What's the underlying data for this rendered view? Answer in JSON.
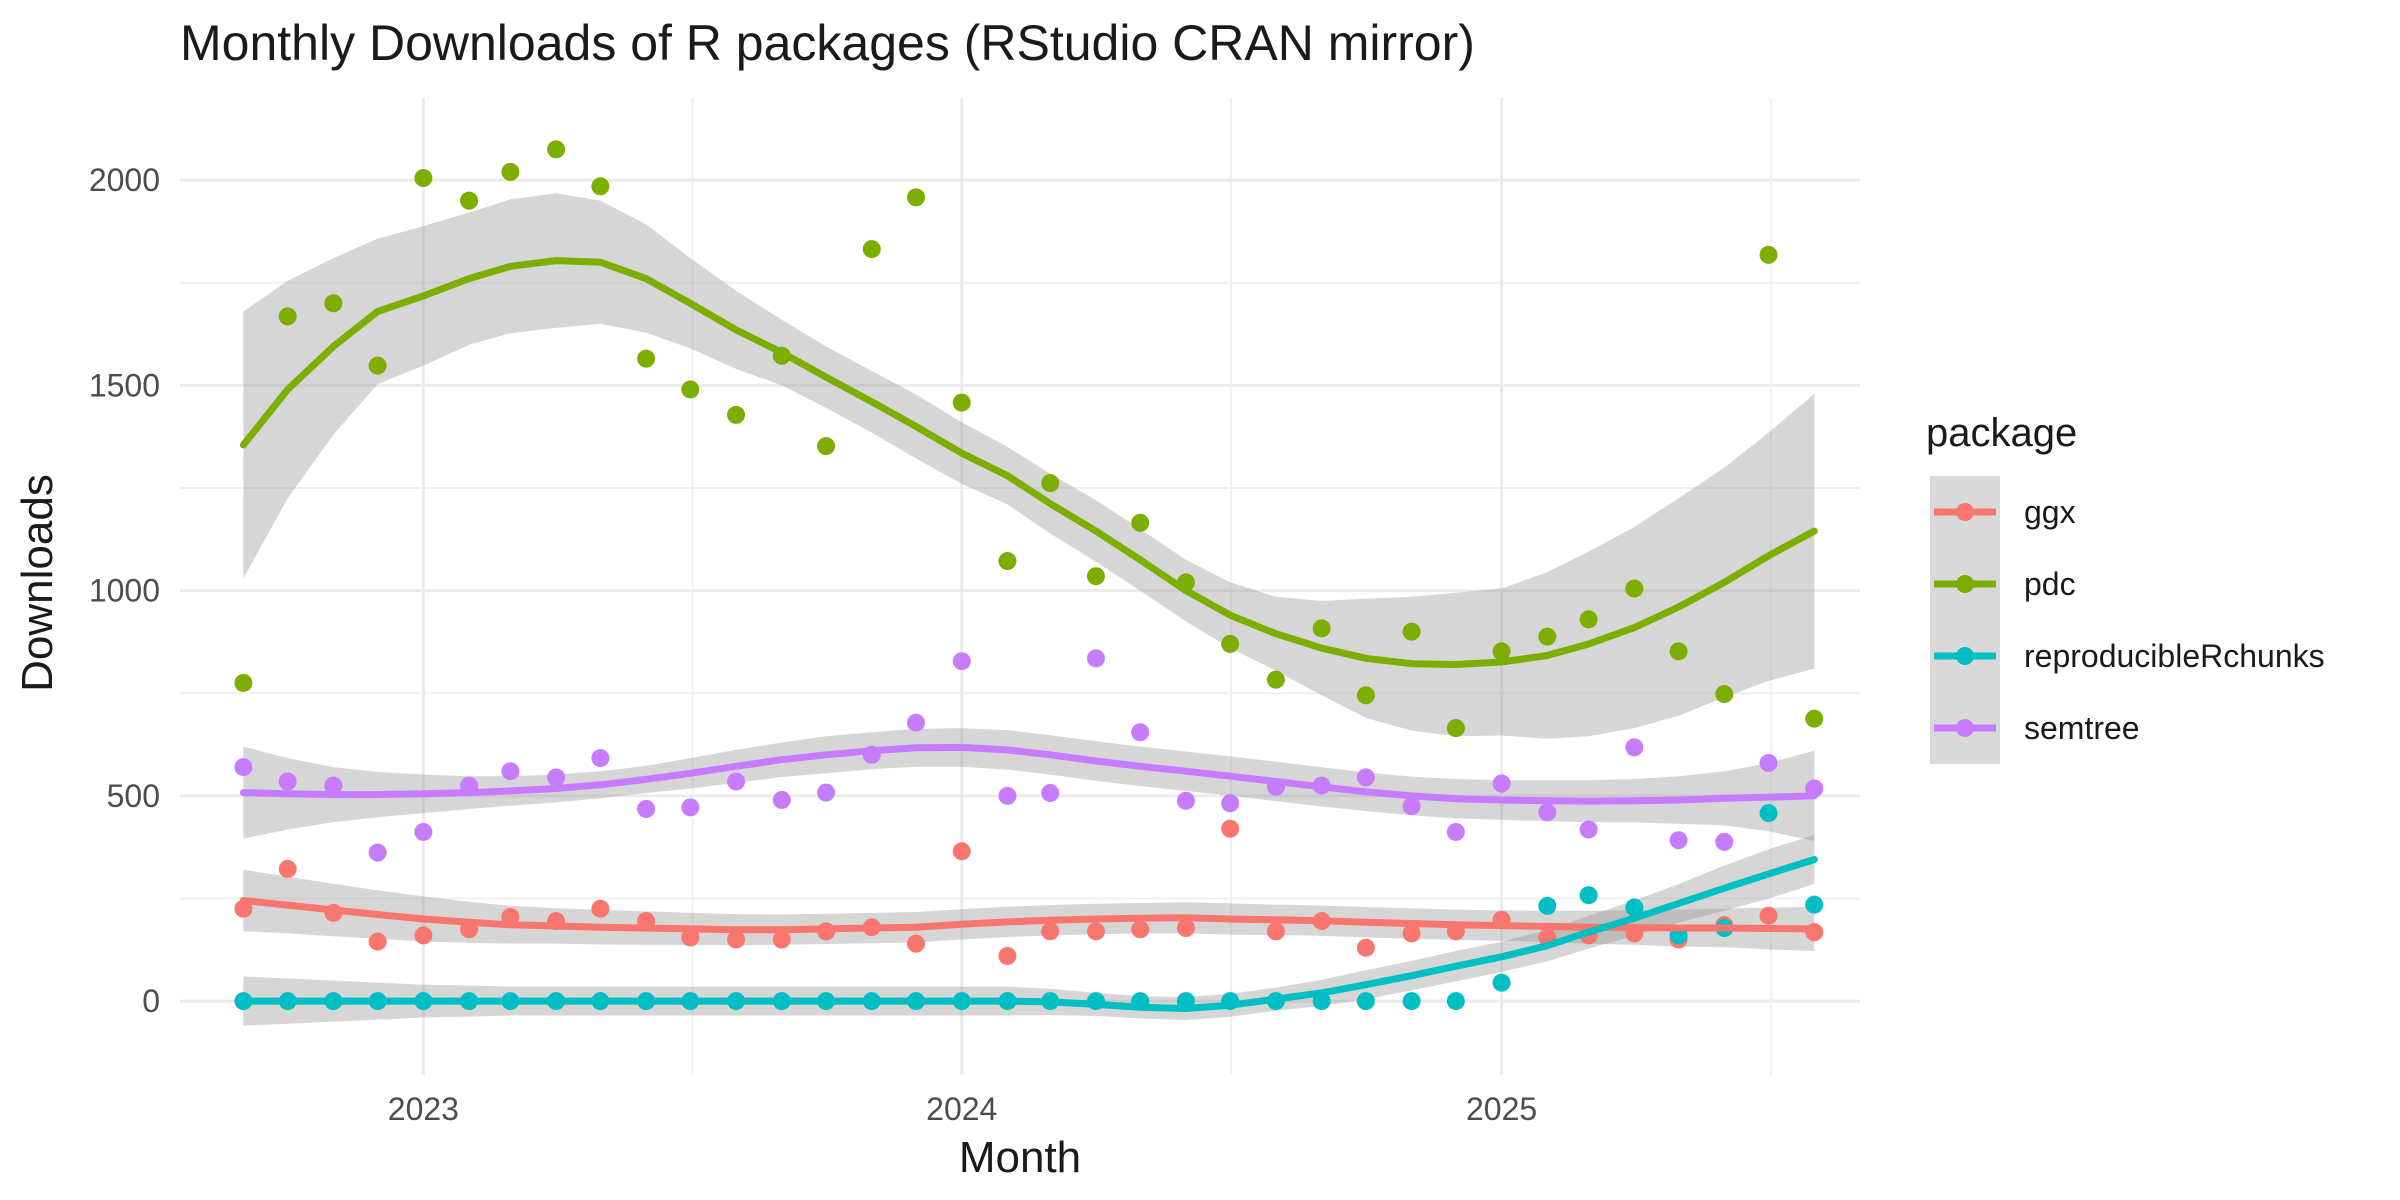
{
  "chart_data": {
    "type": "scatter",
    "title": "Monthly Downloads of R packages (RStudio CRAN mirror)",
    "xlabel": "Month",
    "ylabel": "Downloads",
    "xlim": [
      "2022-07-20",
      "2025-09-01"
    ],
    "ylim": [
      -180,
      2200
    ],
    "x_ticks": [
      "2023-01-01",
      "2024-01-01",
      "2025-01-01"
    ],
    "x_tick_labels": [
      "2023",
      "2024",
      "2025"
    ],
    "y_ticks": [
      0,
      500,
      1000,
      1500,
      2000
    ],
    "y_tick_labels": [
      "0",
      "500",
      "1000",
      "1500",
      "2000"
    ],
    "grid": true,
    "smooth": "loess with confidence band",
    "legend": {
      "title": "package",
      "position": "right"
    },
    "months": [
      "2022-09-01",
      "2022-10-01",
      "2022-11-01",
      "2022-12-01",
      "2023-01-01",
      "2023-02-01",
      "2023-03-01",
      "2023-04-01",
      "2023-05-01",
      "2023-06-01",
      "2023-07-01",
      "2023-08-01",
      "2023-09-01",
      "2023-10-01",
      "2023-11-01",
      "2023-12-01",
      "2024-01-01",
      "2024-02-01",
      "2024-03-01",
      "2024-04-01",
      "2024-05-01",
      "2024-06-01",
      "2024-07-01",
      "2024-08-01",
      "2024-09-01",
      "2024-10-01",
      "2024-11-01",
      "2024-12-01",
      "2025-01-01",
      "2025-02-01",
      "2025-03-01",
      "2025-04-01",
      "2025-05-01",
      "2025-06-01",
      "2025-07-01",
      "2025-08-01"
    ],
    "series": [
      {
        "name": "ggx",
        "color": "#F8766D",
        "values": [
          225,
          322,
          215,
          145,
          160,
          175,
          205,
          195,
          225,
          195,
          155,
          150,
          150,
          170,
          180,
          140,
          365,
          110,
          170,
          170,
          175,
          178,
          420,
          170,
          195,
          130,
          165,
          170,
          198,
          155,
          160,
          165,
          150,
          185,
          208,
          168
        ],
        "smooth": [
          245,
          234,
          222,
          211,
          200,
          192,
          186,
          183,
          180,
          178,
          176,
          174,
          174,
          176,
          178,
          180,
          187,
          193,
          197,
          200,
          202,
          203,
          200,
          198,
          196,
          192,
          189,
          186,
          184,
          182,
          180,
          179,
          178,
          178,
          177,
          176
        ],
        "ci_upper": [
          320,
          303,
          286,
          270,
          255,
          242,
          232,
          226,
          222,
          219,
          215,
          212,
          211,
          213,
          215,
          217,
          224,
          230,
          234,
          237,
          239,
          241,
          238,
          235,
          233,
          229,
          226,
          223,
          221,
          220,
          220,
          221,
          223,
          225,
          228,
          230
        ],
        "ci_lower": [
          170,
          165,
          158,
          152,
          145,
          142,
          140,
          140,
          138,
          137,
          137,
          136,
          137,
          139,
          141,
          143,
          150,
          156,
          160,
          163,
          165,
          165,
          162,
          161,
          159,
          155,
          152,
          149,
          147,
          144,
          140,
          137,
          133,
          131,
          126,
          122
        ]
      },
      {
        "name": "pdc",
        "color": "#7CAE00",
        "values": [
          775,
          1668,
          1700,
          1548,
          2005,
          1950,
          2020,
          2075,
          1985,
          1565,
          1490,
          1428,
          1572,
          1352,
          1832,
          1958,
          1458,
          1072,
          1262,
          1035,
          1165,
          1020,
          870,
          783,
          908,
          745,
          900,
          665,
          852,
          888,
          930,
          1005,
          852,
          748,
          1818,
          688
        ],
        "smooth": [
          1355,
          1490,
          1595,
          1680,
          1718,
          1760,
          1790,
          1804,
          1800,
          1760,
          1700,
          1635,
          1580,
          1520,
          1460,
          1400,
          1335,
          1280,
          1212,
          1145,
          1075,
          1000,
          940,
          895,
          860,
          835,
          822,
          820,
          826,
          842,
          870,
          910,
          960,
          1020,
          1085,
          1145
        ],
        "ci_upper": [
          1680,
          1755,
          1810,
          1857,
          1888,
          1921,
          1953,
          1968,
          1950,
          1892,
          1810,
          1730,
          1660,
          1595,
          1535,
          1478,
          1410,
          1350,
          1285,
          1220,
          1150,
          1075,
          1020,
          985,
          975,
          980,
          985,
          995,
          1005,
          1045,
          1095,
          1155,
          1225,
          1300,
          1385,
          1480
        ],
        "ci_lower": [
          1030,
          1225,
          1380,
          1503,
          1548,
          1599,
          1627,
          1640,
          1650,
          1628,
          1590,
          1540,
          1500,
          1445,
          1385,
          1322,
          1260,
          1210,
          1139,
          1070,
          1000,
          925,
          860,
          805,
          745,
          690,
          659,
          645,
          647,
          639,
          645,
          665,
          695,
          740,
          780,
          810
        ]
      },
      {
        "name": "reproducibleRchunks",
        "color": "#00BFC4",
        "values": [
          0,
          0,
          0,
          0,
          0,
          0,
          0,
          0,
          0,
          0,
          0,
          0,
          0,
          0,
          0,
          0,
          0,
          0,
          0,
          0,
          0,
          0,
          0,
          0,
          0,
          0,
          0,
          0,
          45,
          232,
          258,
          228,
          160,
          178,
          458,
          235
        ],
        "smooth": [
          0,
          0,
          0,
          0,
          0,
          0,
          0,
          0,
          0,
          0,
          0,
          0,
          0,
          0,
          0,
          0,
          0,
          0,
          -2,
          -8,
          -15,
          -18,
          -10,
          5,
          20,
          40,
          62,
          85,
          108,
          135,
          168,
          202,
          238,
          275,
          310,
          345
        ],
        "ci_upper": [
          60,
          55,
          50,
          45,
          40,
          38,
          35,
          35,
          35,
          35,
          35,
          35,
          35,
          35,
          35,
          35,
          35,
          35,
          30,
          20,
          12,
          10,
          18,
          33,
          52,
          75,
          98,
          122,
          145,
          173,
          208,
          245,
          285,
          330,
          370,
          405
        ],
        "ci_lower": [
          -60,
          -55,
          -50,
          -45,
          -40,
          -38,
          -35,
          -35,
          -35,
          -35,
          -35,
          -35,
          -35,
          -35,
          -35,
          -35,
          -35,
          -35,
          -34,
          -36,
          -42,
          -46,
          -38,
          -23,
          -12,
          5,
          26,
          48,
          71,
          97,
          128,
          159,
          191,
          220,
          250,
          285
        ]
      },
      {
        "name": "semtree",
        "color": "#C77CFF",
        "values": [
          570,
          535,
          525,
          362,
          412,
          525,
          560,
          545,
          592,
          468,
          472,
          535,
          490,
          508,
          600,
          678,
          828,
          500,
          507,
          835,
          655,
          488,
          482,
          522,
          525,
          545,
          475,
          412,
          530,
          460,
          418,
          618,
          392,
          388,
          580,
          518
        ],
        "smooth": [
          508,
          505,
          503,
          503,
          505,
          508,
          512,
          518,
          527,
          540,
          555,
          572,
          588,
          600,
          610,
          617,
          618,
          612,
          600,
          585,
          572,
          560,
          548,
          535,
          522,
          510,
          500,
          493,
          490,
          488,
          487,
          488,
          490,
          494,
          497,
          500
        ],
        "ci_upper": [
          620,
          592,
          570,
          558,
          552,
          548,
          548,
          552,
          560,
          573,
          592,
          612,
          630,
          645,
          655,
          663,
          665,
          660,
          648,
          633,
          620,
          608,
          596,
          583,
          570,
          557,
          547,
          541,
          538,
          538,
          538,
          541,
          548,
          560,
          580,
          610
        ],
        "ci_lower": [
          396,
          418,
          436,
          448,
          458,
          468,
          476,
          484,
          494,
          507,
          518,
          532,
          546,
          555,
          565,
          571,
          571,
          564,
          552,
          537,
          524,
          512,
          500,
          487,
          474,
          463,
          453,
          445,
          442,
          438,
          436,
          435,
          432,
          428,
          414,
          390
        ]
      }
    ]
  }
}
